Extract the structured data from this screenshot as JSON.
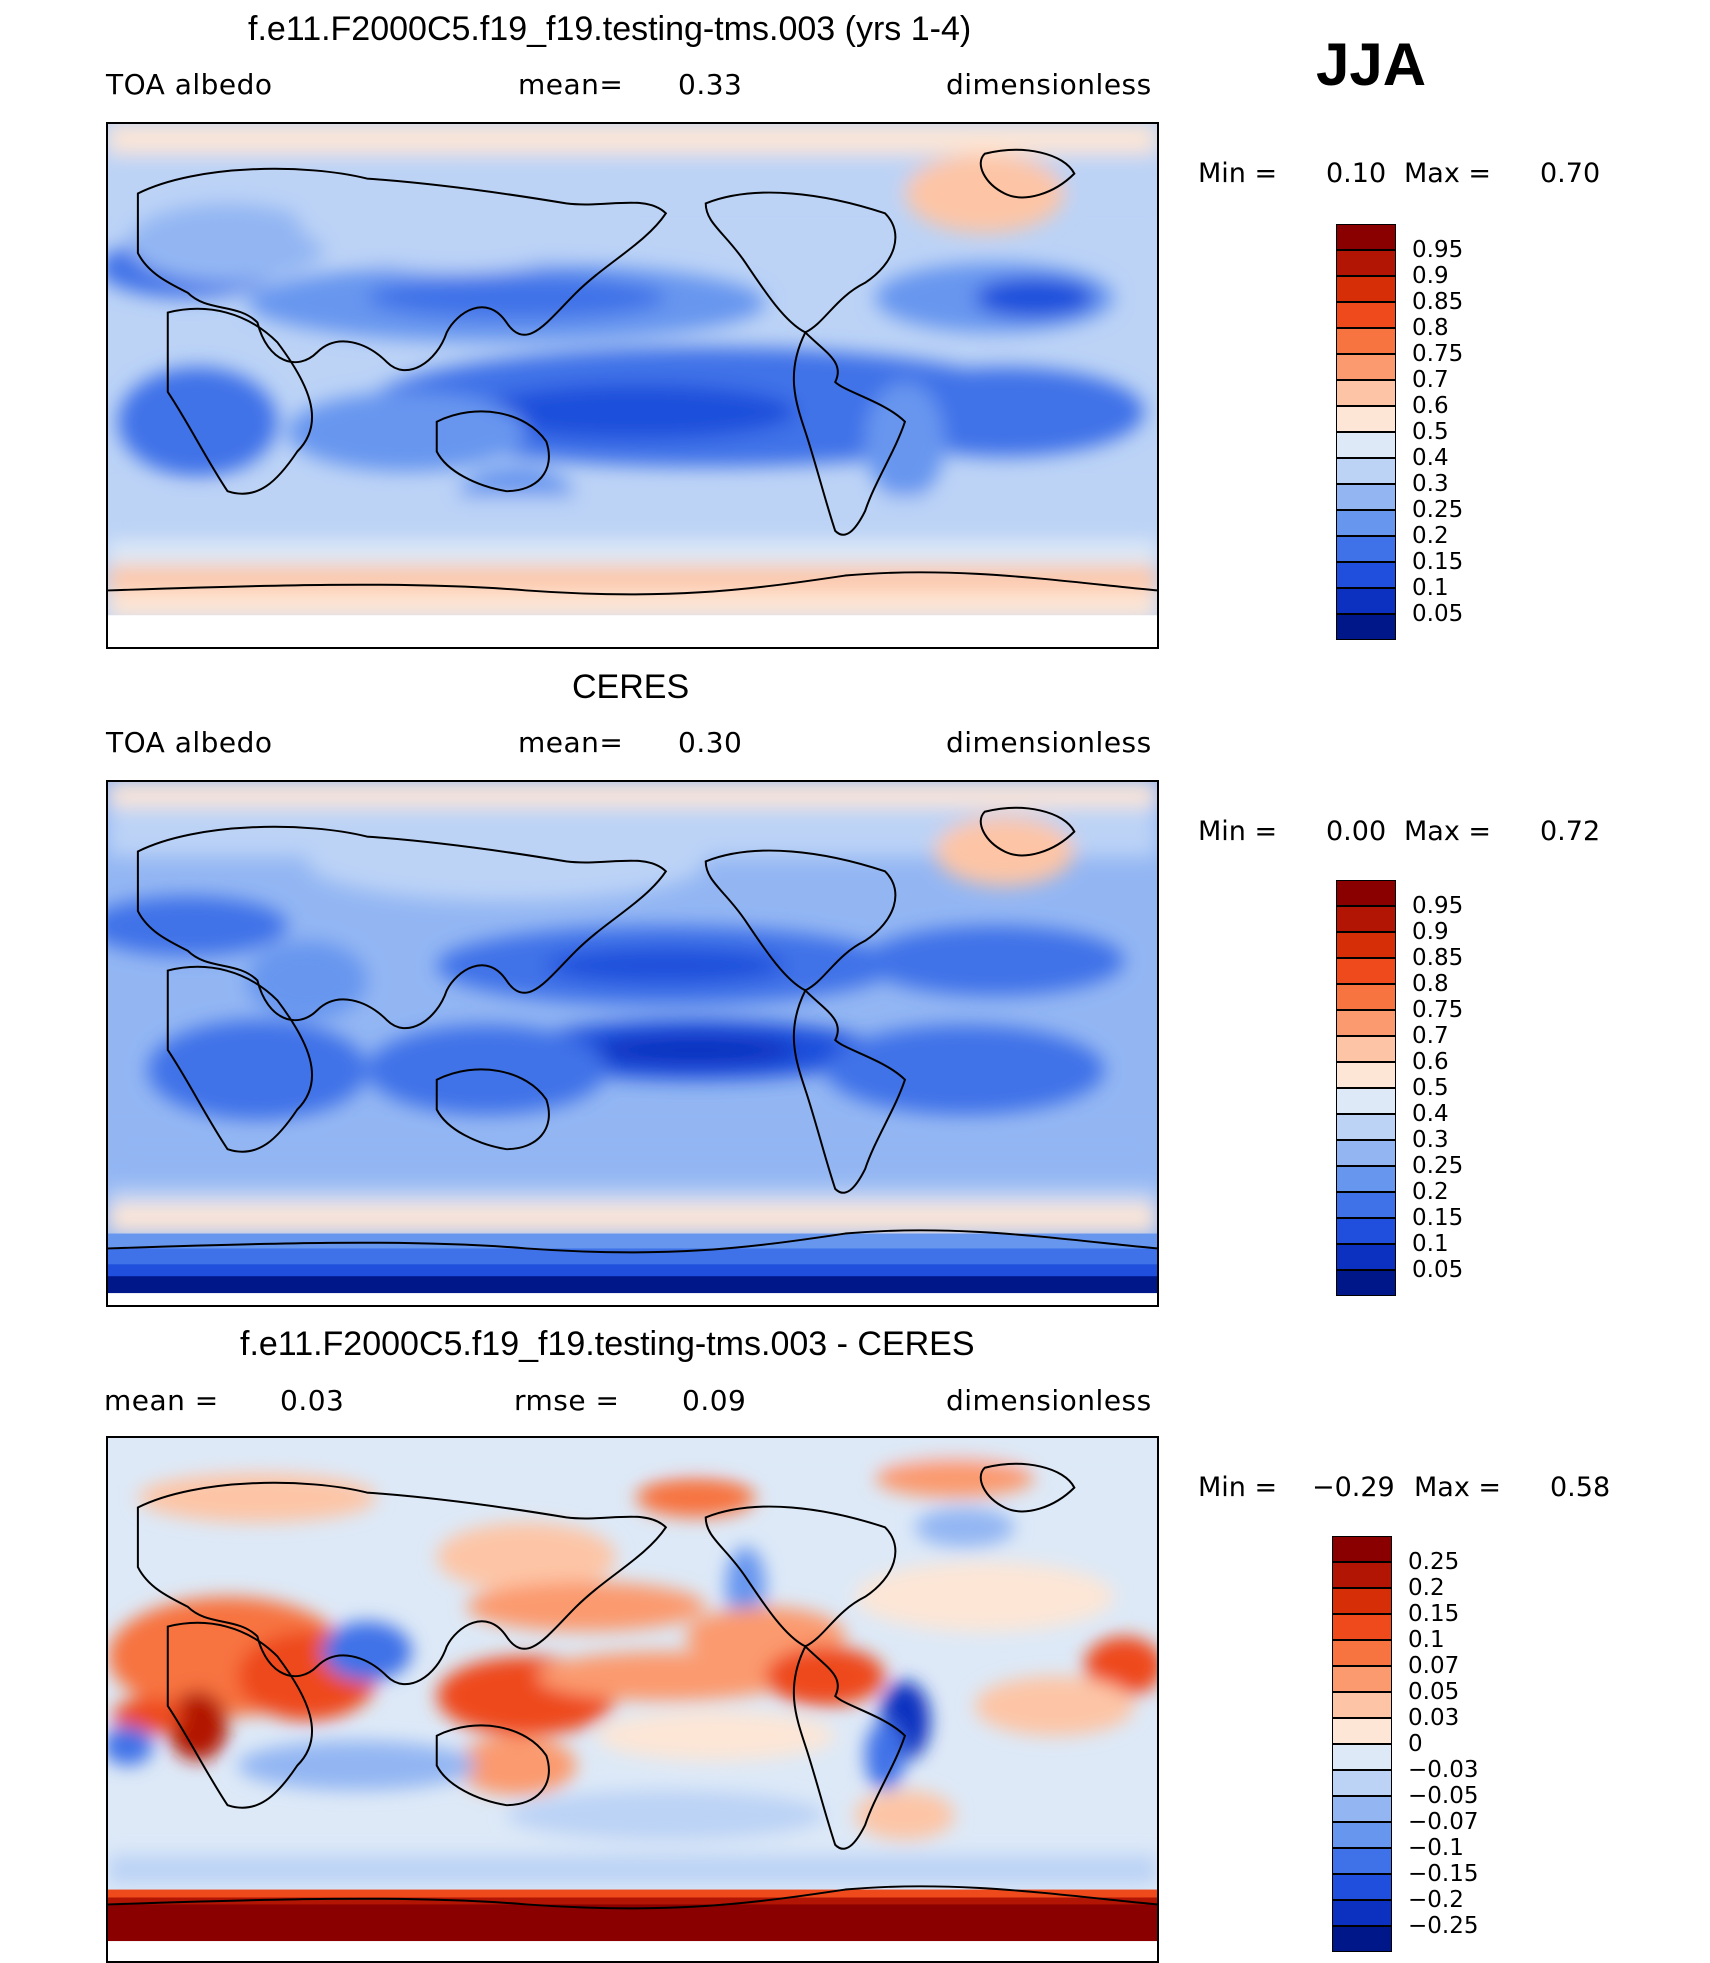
{
  "season": "JJA",
  "panels": [
    {
      "title": "f.e11.F2000C5.f19_f19.testing-tms.003 (yrs 1-4)",
      "left_label": "TOA  albedo",
      "mid_label": "mean=",
      "mid_value": "0.33",
      "right_label": "dimensionless",
      "min_label": "Min  =",
      "min_value": "0.10",
      "max_label": "Max  =",
      "max_value": "0.70"
    },
    {
      "title": "CERES",
      "left_label": "TOA  albedo",
      "mid_label": "mean=",
      "mid_value": "0.30",
      "right_label": "dimensionless",
      "min_label": "Min  =",
      "min_value": "0.00",
      "max_label": "Max  =",
      "max_value": "0.72"
    },
    {
      "title": "f.e11.F2000C5.f19_f19.testing-tms.003 - CERES",
      "left_label": "mean  =",
      "left_value": "0.03",
      "mid_label": "rmse  =",
      "mid_value": "0.09",
      "right_label": "dimensionless",
      "min_label": "Min  =",
      "min_value": "−0.29",
      "max_label": "Max  =",
      "max_value": "0.58"
    }
  ],
  "chart_data": {
    "type": "heatmap",
    "projection": "cylindrical equidistant, Pacific-centered",
    "colorbars": {
      "albedo": {
        "levels": [
          "0.95",
          "0.9",
          "0.85",
          "0.8",
          "0.75",
          "0.7",
          "0.6",
          "0.5",
          "0.4",
          "0.3",
          "0.25",
          "0.2",
          "0.15",
          "0.1",
          "0.05"
        ],
        "colors": [
          "#8a0000",
          "#b21503",
          "#d62e06",
          "#ee4a1c",
          "#f7733f",
          "#fb9a6e",
          "#fdc5a6",
          "#fde6d6",
          "#dde9f7",
          "#bcd3f6",
          "#93b6f3",
          "#6796ef",
          "#3f72e8",
          "#1f4fdc",
          "#0c30c0",
          "#001789"
        ]
      },
      "difference": {
        "levels": [
          "0.25",
          "0.2",
          "0.15",
          "0.1",
          "0.07",
          "0.05",
          "0.03",
          "0",
          "−0.03",
          "−0.05",
          "−0.07",
          "−0.1",
          "−0.15",
          "−0.2",
          "−0.25"
        ],
        "colors": [
          "#8a0000",
          "#b21503",
          "#d62e06",
          "#ee4a1c",
          "#f7733f",
          "#fb9a6e",
          "#fdc5a6",
          "#fde6d6",
          "#dde9f7",
          "#bcd3f6",
          "#93b6f3",
          "#6796ef",
          "#3f72e8",
          "#1f4fdc",
          "#0c30c0",
          "#001789"
        ]
      }
    },
    "colors": {
      "land_high": "#dde9f7",
      "ocean_low": "#3f72e8"
    }
  }
}
